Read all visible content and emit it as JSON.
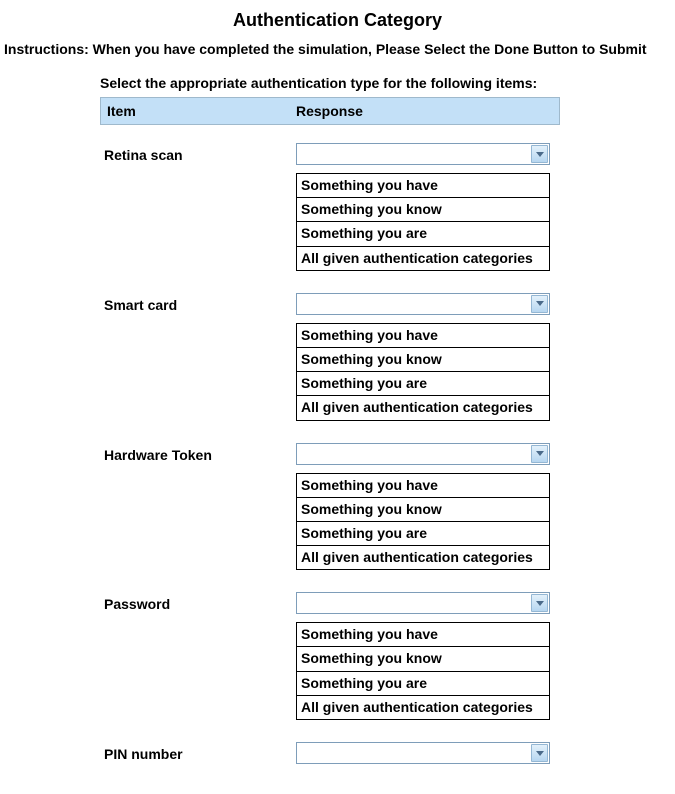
{
  "title": "Authentication Category",
  "instructions": "Instructions: When you have completed the simulation, Please Select the Done Button to Submit",
  "prompt": "Select the appropriate authentication type for the following items:",
  "headers": {
    "item": "Item",
    "response": "Response"
  },
  "colors": {
    "header_bg": "#c3e0f7",
    "header_border": "#9fb9cc",
    "dropdown_border": "#7e9db9",
    "arrow_bg_top": "#e3f1fb",
    "arrow_bg_bottom": "#b6d6f0",
    "arrow_border": "#94b7d4",
    "arrow_color": "#4a6a8a",
    "options_border": "#000000"
  },
  "options": [
    "Something you have",
    "Something you know",
    "Something you are",
    "All given authentication categories"
  ],
  "items": [
    {
      "label": "Retina scan",
      "show_options": true
    },
    {
      "label": "Smart card",
      "show_options": true
    },
    {
      "label": "Hardware Token",
      "show_options": true
    },
    {
      "label": "Password",
      "show_options": true
    },
    {
      "label": "PIN number",
      "show_options": false
    }
  ]
}
